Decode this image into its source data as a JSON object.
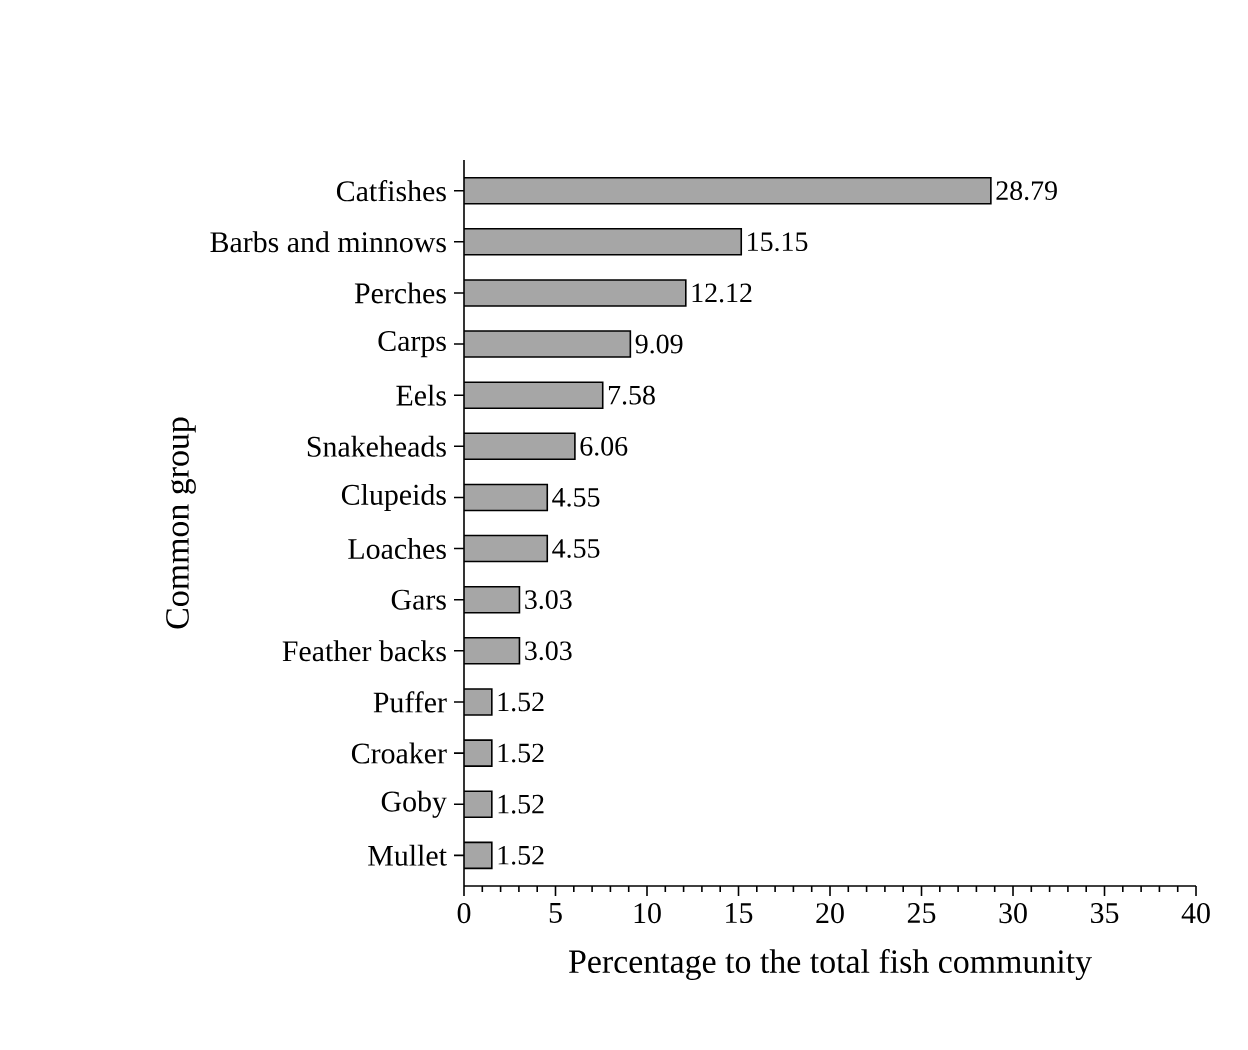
{
  "chart_data": {
    "type": "bar",
    "orientation": "horizontal",
    "xlabel": "Percentage to the total fish community",
    "ylabel": "Common group",
    "categories": [
      "Catfishes",
      "Barbs and minnows",
      "Perches",
      "Carps",
      "Eels",
      "Snakeheads",
      "Clupeids",
      "Loaches",
      "Gars",
      "Feather backs",
      "Puffer",
      "Croaker",
      "Goby",
      "Mullet"
    ],
    "values": [
      28.79,
      15.15,
      12.12,
      9.09,
      7.58,
      6.06,
      4.55,
      4.55,
      3.03,
      3.03,
      1.52,
      1.52,
      1.52,
      1.52
    ],
    "value_labels": [
      "28.79",
      "15.15",
      "12.12",
      "9.09",
      "7.58",
      "6.06",
      "4.55",
      "4.55",
      "3.03",
      "3.03",
      "1.52",
      "1.52",
      "1.52",
      "1.52"
    ],
    "color": "#a6a6a6",
    "xlim": [
      0,
      40
    ],
    "xticks": [
      0,
      5,
      10,
      15,
      20,
      25,
      30,
      35,
      40
    ],
    "grid": false
  }
}
